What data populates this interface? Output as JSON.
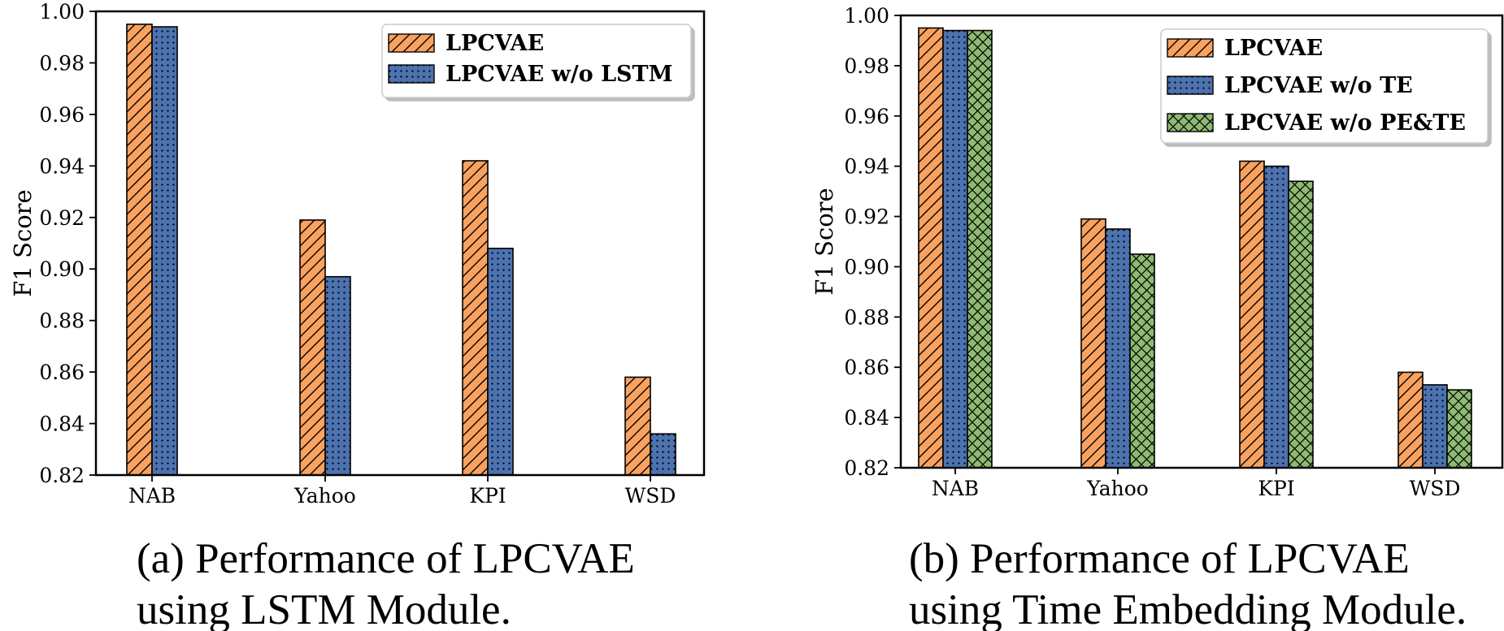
{
  "chart_data": [
    {
      "type": "bar",
      "id": "a",
      "categories": [
        "NAB",
        "Yahoo",
        "KPI",
        "WSD"
      ],
      "series": [
        {
          "name": "LPCVAE",
          "values": [
            0.995,
            0.919,
            0.942,
            0.858
          ],
          "color": "#F9A25F",
          "pattern": "hatch-diagonal"
        },
        {
          "name": "LPCVAE w/o LSTM",
          "values": [
            0.994,
            0.897,
            0.908,
            0.836
          ],
          "color": "#4C72B0",
          "pattern": "dots"
        }
      ],
      "ylabel": "F1 Score",
      "ylim": [
        0.82,
        1.0
      ],
      "yticks": [
        "0.82",
        "0.84",
        "0.86",
        "0.88",
        "0.90",
        "0.92",
        "0.94",
        "0.96",
        "0.98",
        "1.00"
      ],
      "legend": "top-right",
      "caption_lines": [
        "(a) Performance of LPCVAE",
        "using LSTM Module."
      ]
    },
    {
      "type": "bar",
      "id": "b",
      "categories": [
        "NAB",
        "Yahoo",
        "KPI",
        "WSD"
      ],
      "series": [
        {
          "name": "LPCVAE",
          "values": [
            0.995,
            0.919,
            0.942,
            0.858
          ],
          "color": "#F9A25F",
          "pattern": "hatch-diagonal"
        },
        {
          "name": "LPCVAE w/o TE",
          "values": [
            0.994,
            0.915,
            0.94,
            0.853
          ],
          "color": "#4C72B0",
          "pattern": "dots"
        },
        {
          "name": "LPCVAE w/o PE&TE",
          "values": [
            0.994,
            0.905,
            0.934,
            0.851
          ],
          "color": "#8DBB71",
          "pattern": "crosshatch"
        }
      ],
      "ylabel": "F1 Score",
      "ylim": [
        0.82,
        1.0
      ],
      "yticks": [
        "0.82",
        "0.84",
        "0.86",
        "0.88",
        "0.90",
        "0.92",
        "0.94",
        "0.96",
        "0.98",
        "1.00"
      ],
      "legend": "top-right",
      "caption_lines": [
        "(b) Performance of LPCVAE",
        "using Time Embedding Module."
      ]
    }
  ]
}
